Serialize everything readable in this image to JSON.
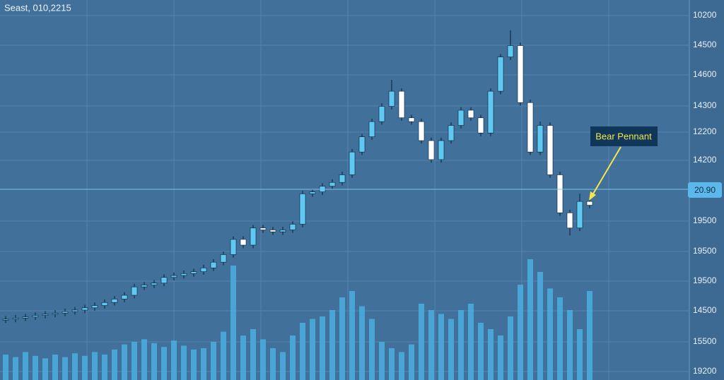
{
  "header": "Seast, 010,2215",
  "price_axis_labels": [
    "10200",
    "14500",
    "14600",
    "14300",
    "12200",
    "14200",
    "19500",
    "19500",
    "19500",
    "14500",
    "15500",
    "19200"
  ],
  "current_price_label": "20.90",
  "annotation": "Bear Pennant",
  "chart_data": {
    "type": "candlestick",
    "ylim": [
      0,
      100
    ],
    "volume_lim": [
      0,
      100
    ],
    "up_color": "#5ec8f0",
    "down_color": "#ffffff",
    "volume_color": "#4aaee0",
    "open": [
      15.8,
      16,
      16.3,
      16.6,
      17,
      17.3,
      17.6,
      18,
      18.4,
      19,
      19.6,
      20.4,
      21.3,
      22.3,
      24.5,
      25,
      25.5,
      27,
      27.5,
      28,
      28.5,
      29.5,
      31,
      33,
      37,
      35.5,
      40,
      39.5,
      39,
      39.5,
      41,
      49,
      49.5,
      51,
      52,
      54,
      60,
      64,
      68,
      72,
      76,
      69,
      68,
      63,
      58,
      63,
      67,
      71,
      69,
      65,
      76,
      85,
      88,
      73,
      60,
      67,
      54,
      44,
      40,
      47
    ],
    "high": [
      16.8,
      17.1,
      17.4,
      17.8,
      18.1,
      18.4,
      18.8,
      19.2,
      19.8,
      20.4,
      21.2,
      22.1,
      23.1,
      25.3,
      25.8,
      26.3,
      27.8,
      28.3,
      28.8,
      29.3,
      30.3,
      31.8,
      33.8,
      37.8,
      37.8,
      40.8,
      40.8,
      40.3,
      40.3,
      41.8,
      49.8,
      50.3,
      51.8,
      52.8,
      54.8,
      60.8,
      64.8,
      68.8,
      72.8,
      79,
      76.8,
      69.8,
      68.8,
      63.8,
      63.8,
      67.8,
      71.8,
      71.8,
      69.8,
      76.8,
      85.8,
      92,
      88.8,
      73.8,
      68,
      67.8,
      54.8,
      44.8,
      49,
      47.8
    ],
    "low": [
      15,
      15.2,
      15.5,
      15.8,
      16.2,
      16.5,
      16.8,
      17.2,
      17.6,
      18.2,
      18.8,
      19.6,
      20.5,
      21.5,
      23.7,
      24.2,
      24.7,
      26.2,
      26.7,
      27.2,
      27.7,
      28.7,
      30.2,
      32.2,
      34.7,
      34.7,
      38.7,
      38.2,
      38.2,
      38.7,
      40.2,
      48.2,
      48.7,
      50.2,
      51.2,
      53.2,
      59.2,
      63.2,
      67.2,
      71.2,
      68.2,
      67.2,
      62.2,
      57.2,
      57.2,
      62.2,
      66.2,
      68.2,
      64.2,
      64.2,
      75.2,
      84.2,
      72.2,
      59.2,
      59.2,
      53.2,
      43.2,
      38,
      39.2,
      45.2
    ],
    "close": [
      16,
      16.3,
      16.6,
      17,
      17.3,
      17.6,
      18,
      18.4,
      19,
      19.6,
      20.4,
      21.3,
      22.3,
      24.5,
      25,
      25.5,
      27,
      27.5,
      28,
      28.5,
      29.5,
      31,
      33,
      37,
      35.5,
      40,
      39.5,
      39,
      39.5,
      41,
      49,
      49.5,
      51,
      52,
      54,
      60,
      64,
      68,
      72,
      76,
      69,
      68,
      63,
      58,
      63,
      67,
      71,
      69,
      65,
      76,
      85,
      88,
      73,
      60,
      67,
      54,
      44,
      40,
      47,
      46
    ],
    "volume": [
      20,
      18,
      22,
      19,
      17,
      20,
      18,
      21,
      19,
      22,
      20,
      24,
      28,
      30,
      32,
      29,
      26,
      31,
      27,
      24,
      25,
      30,
      38,
      90,
      35,
      40,
      32,
      25,
      22,
      35,
      45,
      48,
      50,
      55,
      65,
      70,
      58,
      48,
      30,
      25,
      22,
      28,
      60,
      55,
      52,
      48,
      55,
      60,
      45,
      40,
      35,
      50,
      75,
      95,
      85,
      72,
      65,
      55,
      40,
      70
    ]
  }
}
